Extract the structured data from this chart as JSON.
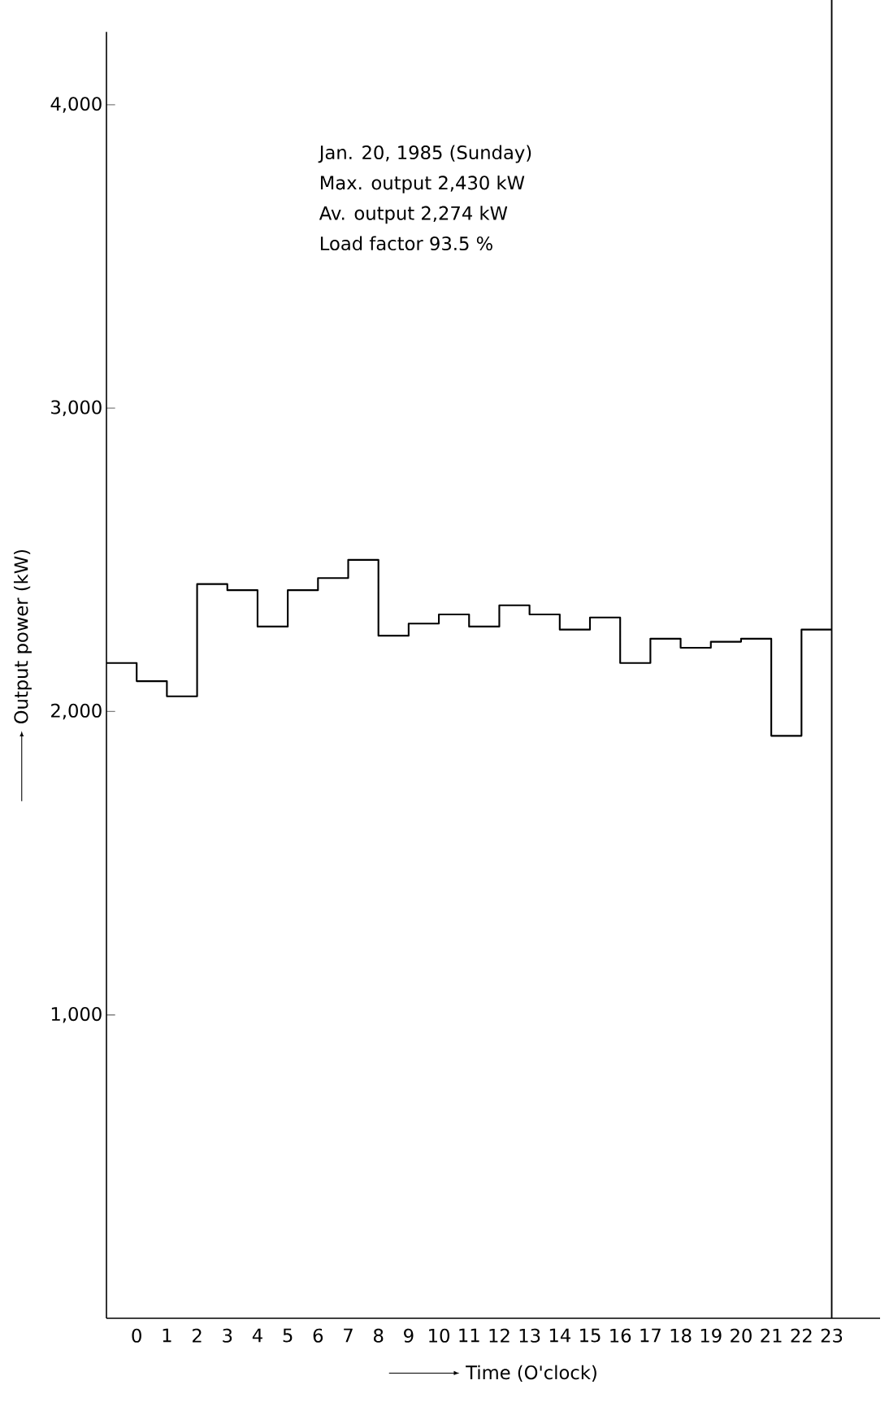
{
  "chart_data": {
    "type": "step",
    "xlabel": "Time (O'clock)",
    "ylabel": "Output power (kW)",
    "annotations": [
      "Jan. 20, 1985 (Sunday)",
      "Max. output  2,430 kW",
      "Av.  output  2,274 kW",
      "Load factor   93.5 %"
    ],
    "x": [
      -1,
      0,
      1,
      2,
      3,
      4,
      5,
      6,
      7,
      8,
      9,
      10,
      11,
      12,
      13,
      14,
      15,
      16,
      17,
      18,
      19,
      20,
      21,
      22,
      23
    ],
    "series": [
      {
        "color": "#000000",
        "values": [
          2160,
          2100,
          2050,
          2420,
          2400,
          2280,
          2400,
          2440,
          2500,
          2250,
          2290,
          2320,
          2280,
          2350,
          2320,
          2270,
          2310,
          2160,
          2240,
          2210,
          2230,
          2240,
          1920,
          2270,
          2270
        ]
      }
    ],
    "xlim": [
      -1,
      24.6
    ],
    "ylim": [
      0,
      4240
    ],
    "xticks": [
      0,
      1,
      2,
      3,
      4,
      5,
      6,
      7,
      8,
      9,
      10,
      11,
      12,
      13,
      14,
      15,
      16,
      17,
      18,
      19,
      20,
      21,
      22,
      23
    ],
    "yticks": [
      {
        "value": 1000,
        "label": "1,000"
      },
      {
        "value": 2000,
        "label": "2,000"
      },
      {
        "value": 3000,
        "label": "3,000"
      },
      {
        "value": 4000,
        "label": "4,000"
      }
    ],
    "ref_lines": [
      {
        "axis": "x",
        "value": 23,
        "color": "#000000"
      }
    ]
  }
}
